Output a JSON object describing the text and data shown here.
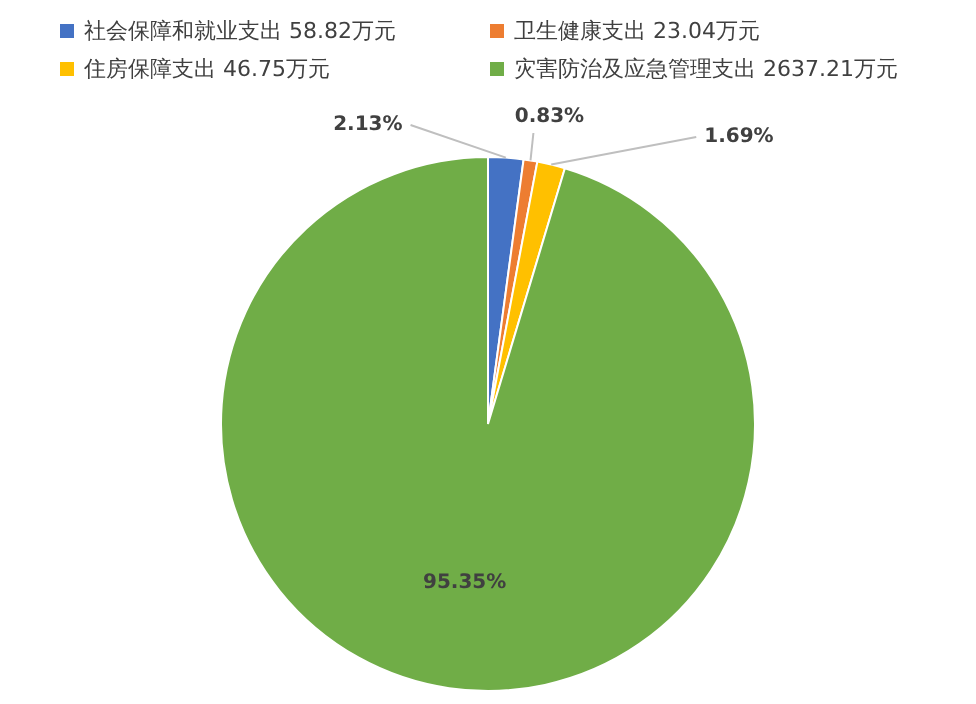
{
  "chart_data": {
    "type": "pie",
    "categories": [
      "社会保障和就业支出 58.82万元",
      "卫生健康支出 23.04万元",
      "住房保障支出 46.75万元",
      "灾害防治及应急管理支出 2637.21万元"
    ],
    "values": [
      2.13,
      0.83,
      1.69,
      95.35
    ],
    "colors": [
      "#4472c4",
      "#ed7d31",
      "#ffc000",
      "#70ad47"
    ],
    "value_labels": [
      "2.13%",
      "0.83%",
      "1.69%",
      "95.35%"
    ],
    "legend": "top"
  }
}
